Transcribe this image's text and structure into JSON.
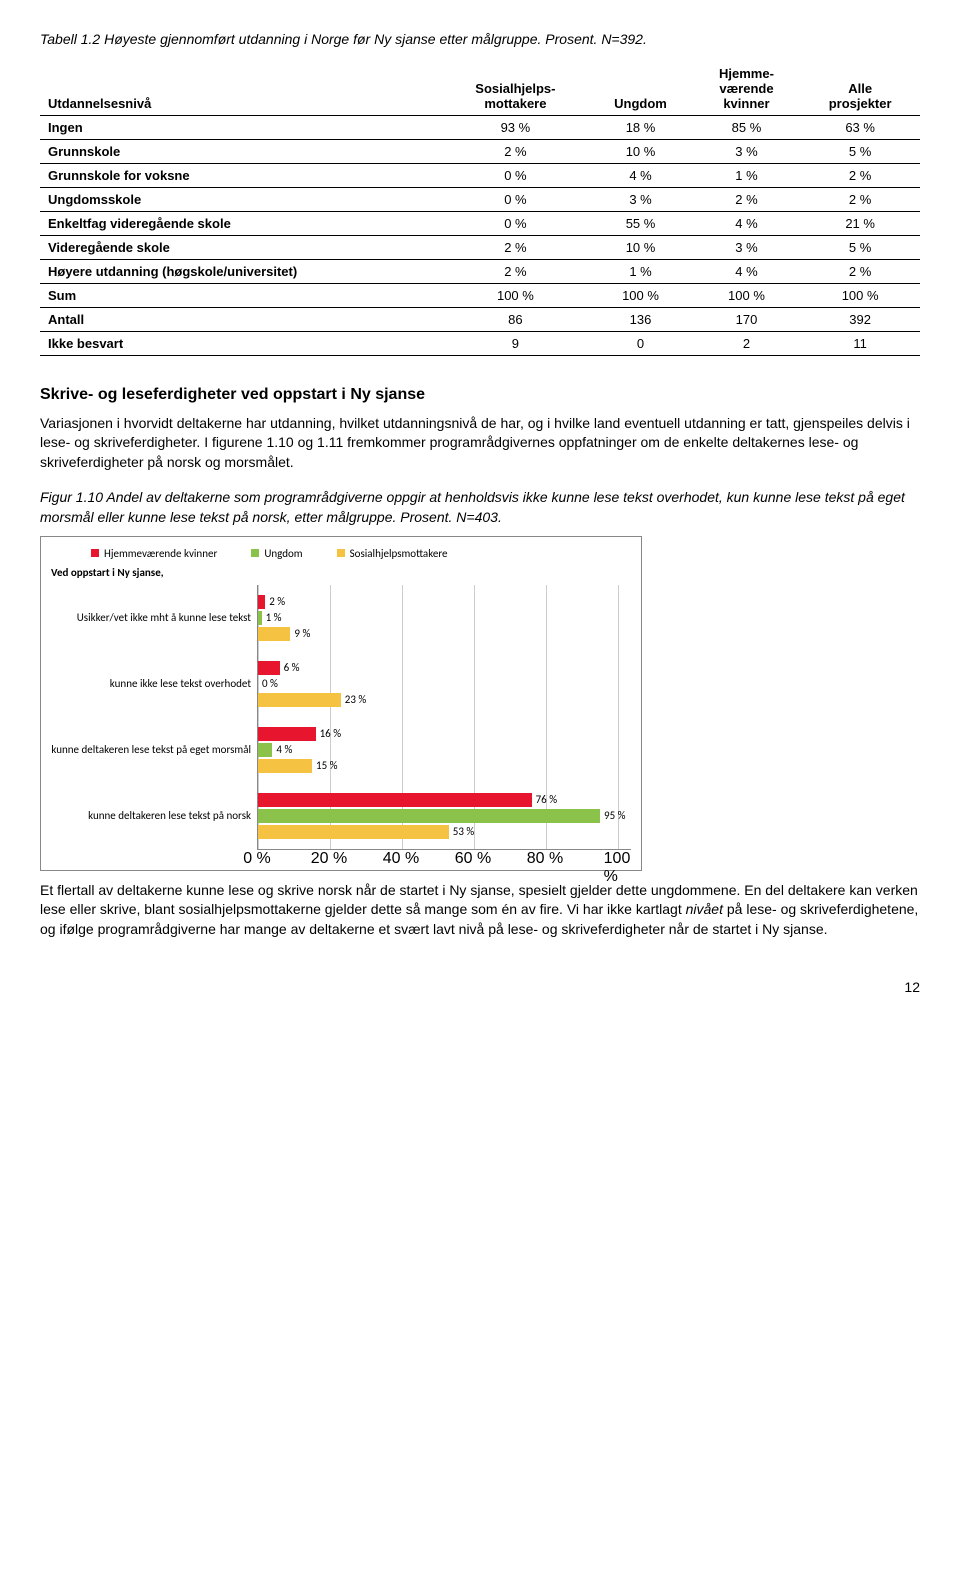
{
  "table": {
    "caption": "Tabell 1.2 Høyeste gjennomført utdanning i Norge før Ny sjanse etter målgruppe. Prosent. N=392.",
    "headers": [
      "Utdannelsesnivå",
      "Sosialhjelps-\nmottakere",
      "Ungdom",
      "Hjemme-\nværende\nkvinner",
      "Alle\nprosjekter"
    ],
    "rows": [
      [
        "Ingen",
        "93 %",
        "18 %",
        "85 %",
        "63 %"
      ],
      [
        "Grunnskole",
        "2 %",
        "10 %",
        "3 %",
        "5 %"
      ],
      [
        "Grunnskole for voksne",
        "0 %",
        "4 %",
        "1 %",
        "2 %"
      ],
      [
        "Ungdomsskole",
        "0 %",
        "3 %",
        "2 %",
        "2 %"
      ],
      [
        "Enkeltfag videregående skole",
        "0 %",
        "55 %",
        "4 %",
        "21 %"
      ],
      [
        "Videregående skole",
        "2 %",
        "10 %",
        "3 %",
        "5 %"
      ],
      [
        "Høyere utdanning (høgskole/universitet)",
        "2 %",
        "1 %",
        "4 %",
        "2 %"
      ],
      [
        "Sum",
        "100 %",
        "100 %",
        "100 %",
        "100 %"
      ],
      [
        "Antall",
        "86",
        "136",
        "170",
        "392"
      ],
      [
        "Ikke besvart",
        "9",
        "0",
        "2",
        "11"
      ]
    ]
  },
  "section_title": "Skrive- og leseferdigheter ved oppstart i Ny sjanse",
  "para1": "Variasjonen i hvorvidt deltakerne har utdanning, hvilket utdanningsnivå de har, og i hvilke land eventuell utdanning er tatt, gjenspeiles delvis i lese- og skriveferdigheter. I figurene 1.10 og 1.11 fremkommer programrådgivernes oppfatninger om de enkelte deltakernes lese- og skriveferdigheter på norsk og morsmålet.",
  "fig_caption": "Figur 1.10 Andel av deltakerne som programrådgiverne oppgir at henholdsvis ikke kunne lese tekst overhodet, kun kunne lese tekst på eget morsmål eller kunne lese tekst på norsk, etter målgruppe. Prosent. N=403.",
  "chart": {
    "legend": [
      {
        "label": "Hjemmeværende kvinner",
        "color": "#e8152f"
      },
      {
        "label": "Ungdom",
        "color": "#8bc34a"
      },
      {
        "label": "Sosialhjelpsmottakere",
        "color": "#f5c242"
      }
    ],
    "y_title": "Ved oppstart i Ny sjanse,",
    "categories": [
      "Usikker/vet ikke mht å kunne lese tekst",
      "kunne ikke lese tekst overhodet",
      "kunne deltakeren lese tekst på eget morsmål",
      "kunne deltakeren lese tekst på norsk"
    ],
    "series": {
      "hjemme": [
        2,
        6,
        16,
        76
      ],
      "ungdom": [
        1,
        0,
        4,
        95
      ],
      "sosial": [
        9,
        23,
        15,
        53
      ]
    },
    "colors": {
      "hjemme": "#e8152f",
      "ungdom": "#8bc34a",
      "sosial": "#f5c242"
    },
    "xmax": 100,
    "xticks": [
      0,
      20,
      40,
      60,
      80,
      100
    ]
  },
  "para2": "Et flertall av deltakerne kunne lese og skrive norsk når de startet i Ny sjanse, spesielt gjelder dette ungdommene. En del deltakere kan verken lese eller skrive, blant sosialhjelpsmottakerne gjelder dette så mange som én av fire. Vi har ikke kartlagt ",
  "para2_italic": "nivået",
  "para2_cont": " på lese- og skriveferdighetene, og ifølge programrådgiverne har mange av deltakerne et svært lavt nivå på lese- og skriveferdigheter når de startet i Ny sjanse.",
  "page_number": "12"
}
